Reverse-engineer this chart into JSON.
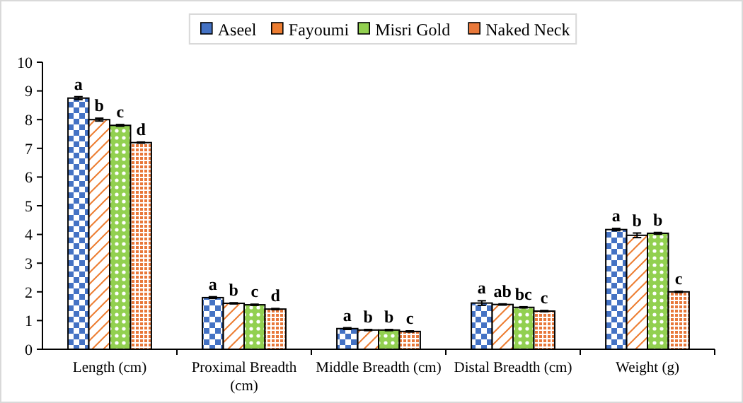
{
  "chart_data": {
    "type": "bar",
    "categories": [
      "Length (cm)",
      "Proximal Breadth (cm)",
      "Middle Breadth (cm)",
      "Distal Breadth (cm)",
      "Weight (g)"
    ],
    "series": [
      {
        "name": "Aseel",
        "color": "#4472c4",
        "values": [
          8.75,
          1.8,
          0.72,
          1.61,
          4.17
        ],
        "errors": [
          0.05,
          0.03,
          0.03,
          0.08,
          0.04
        ],
        "value_labels": [
          "a",
          "a",
          "a",
          "a",
          "a"
        ]
      },
      {
        "name": "Fayoumi",
        "color": "#ed7d31",
        "values": [
          8.0,
          1.6,
          0.67,
          1.56,
          3.97
        ],
        "errors": [
          0.05,
          0.02,
          0.02,
          0.02,
          0.08
        ],
        "value_labels": [
          "b",
          "b",
          "b",
          "ab",
          "b"
        ]
      },
      {
        "name": "Misri Gold",
        "color": "#92d050",
        "values": [
          7.8,
          1.55,
          0.67,
          1.46,
          4.04
        ],
        "errors": [
          0.03,
          0.02,
          0.02,
          0.02,
          0.03
        ],
        "value_labels": [
          "c",
          "c",
          "b",
          "bc",
          "b"
        ]
      },
      {
        "name": "Naked Neck",
        "color": "#e8783a",
        "values": [
          7.2,
          1.4,
          0.62,
          1.33,
          2.0
        ],
        "errors": [
          0.02,
          0.02,
          0.02,
          0.02,
          0.02
        ],
        "value_labels": [
          "d",
          "d",
          "c",
          "c",
          "c"
        ]
      }
    ],
    "ylim": [
      0,
      10
    ],
    "yticks": [
      0,
      1,
      2,
      3,
      4,
      5,
      6,
      7,
      8,
      9,
      10
    ],
    "grid": false,
    "legend": "top"
  }
}
